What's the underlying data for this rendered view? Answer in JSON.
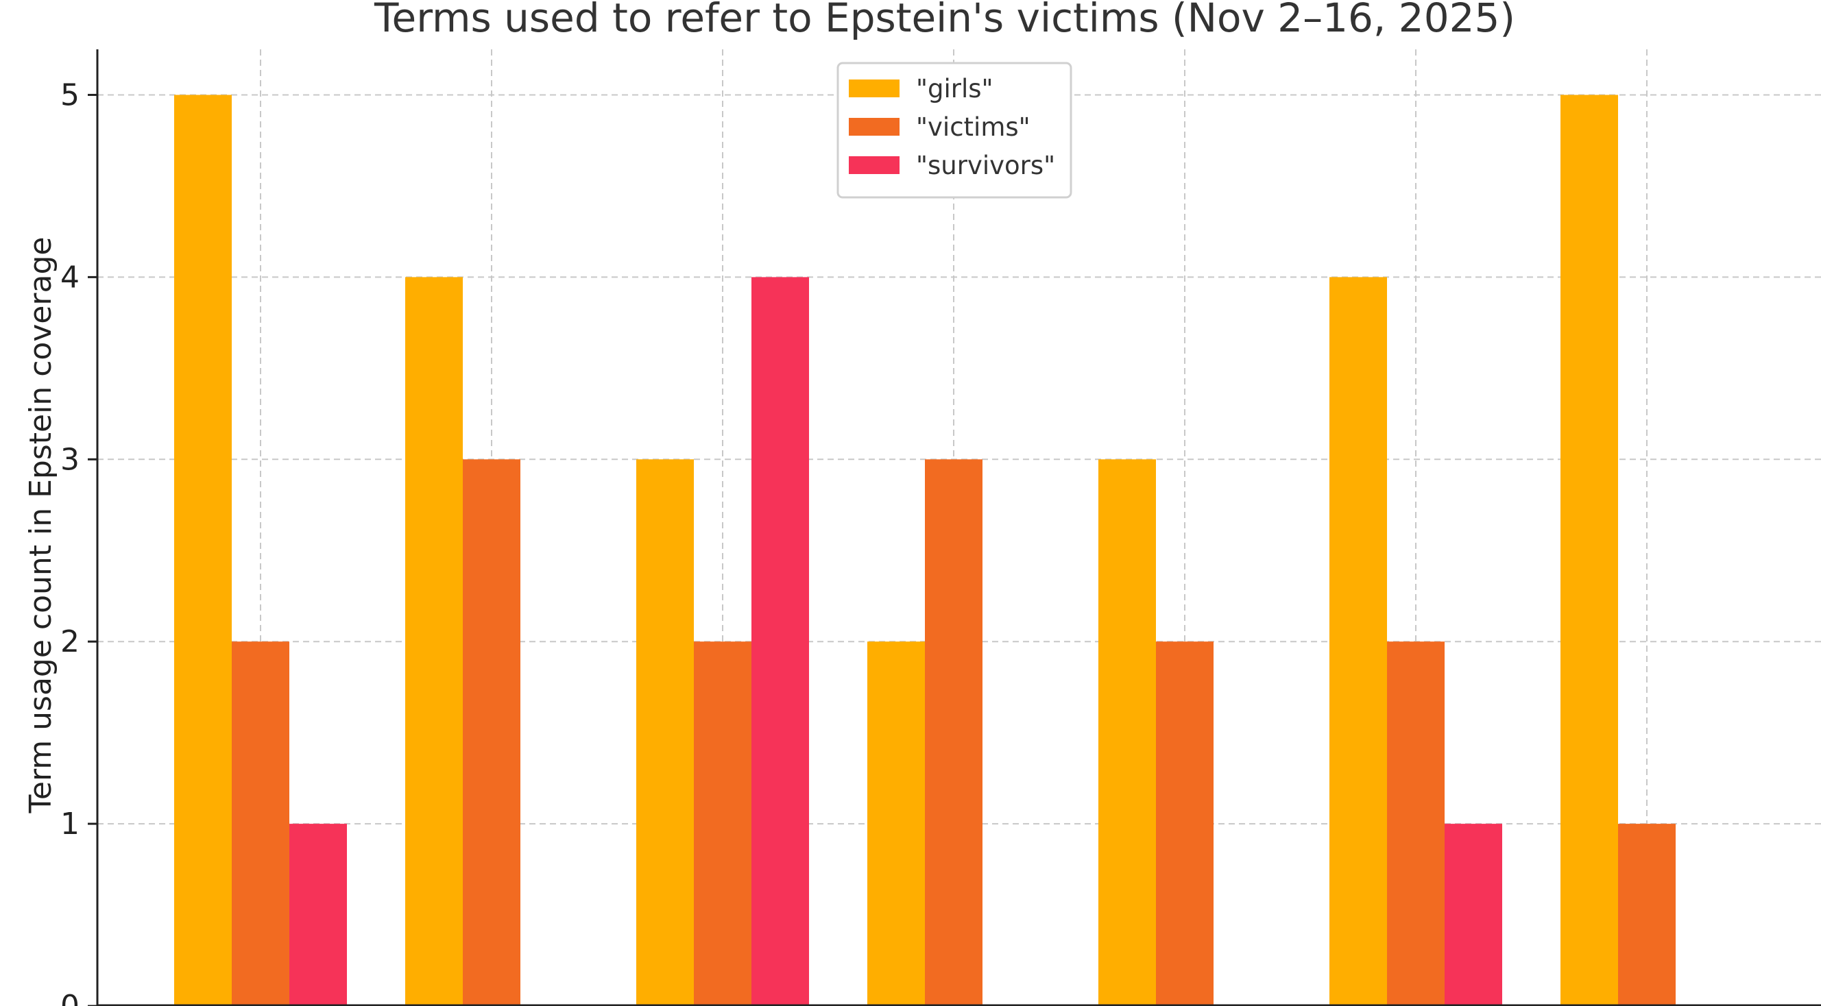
{
  "chart_data": {
    "type": "bar",
    "title": "Terms used to refer to Epstein's victims (Nov 2–16, 2025)",
    "xlabel": "",
    "ylabel": "Term usage count in Epstein coverage",
    "ylim": [
      0,
      5.25
    ],
    "yticks": [
      0,
      1,
      2,
      3,
      4,
      5
    ],
    "grid": true,
    "legend_position": "top-center",
    "categories": [
      "",
      "",
      "",
      "",
      "",
      "",
      ""
    ],
    "series": [
      {
        "name": "\"girls\"",
        "color": "#FFAE00",
        "values": [
          5,
          4,
          3,
          2,
          3,
          4,
          5
        ]
      },
      {
        "name": "\"victims\"",
        "color": "#F26B21",
        "values": [
          2,
          3,
          2,
          3,
          2,
          2,
          1
        ]
      },
      {
        "name": "\"survivors\"",
        "color": "#F63358",
        "values": [
          1,
          0,
          4,
          0,
          0,
          1,
          0
        ]
      }
    ]
  }
}
